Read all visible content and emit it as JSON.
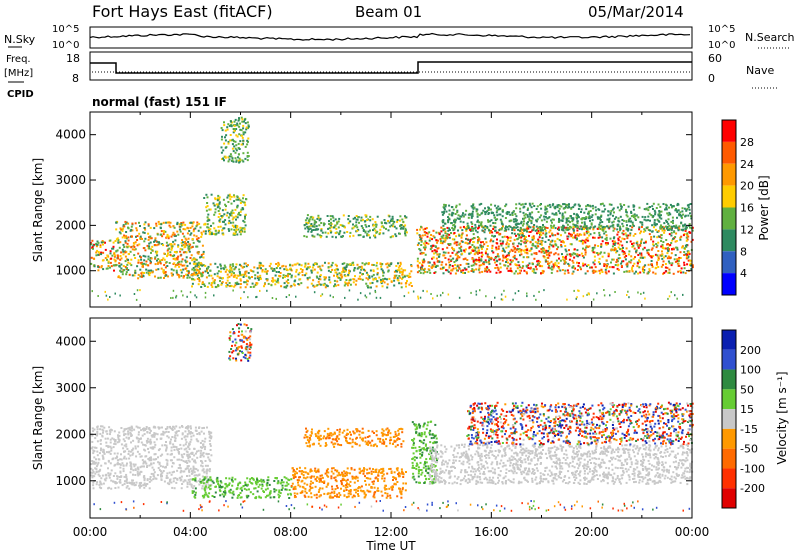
{
  "header": {
    "station": "Fort Hays East (fitACF)",
    "beam": "Beam 01",
    "date": "05/Mar/2014"
  },
  "nsky_panel": {
    "left_label": "N.Sky",
    "right_label": "N.Search",
    "tick_top": "10^5",
    "tick_bottom": "10^0",
    "right_tick_top": "10^5",
    "right_tick_bottom": "10^0"
  },
  "freq_panel": {
    "left_label_1": "Freq.",
    "left_label_2": "[MHz]",
    "cpid_label": "CPID",
    "right_label": "Nave",
    "left_ticks": [
      "18",
      "8"
    ],
    "right_ticks": [
      "60",
      "0"
    ],
    "mode_text": "normal (fast) 151 IF"
  },
  "colorbars": {
    "power": {
      "label": "Power [dB]",
      "ticks": [
        "28",
        "24",
        "20",
        "16",
        "12",
        "8",
        "4"
      ],
      "colors": [
        "#ff0000",
        "#ff5a00",
        "#ff9900",
        "#ffcc00",
        "#60b040",
        "#2e8a60",
        "#3060c0",
        "#0000ff"
      ]
    },
    "velocity": {
      "label": "Velocity [m s⁻¹]",
      "ticks": [
        "200",
        "100",
        "50",
        "15",
        "-15",
        "-50",
        "-100",
        "-200"
      ],
      "colors": [
        "#0a1fb0",
        "#3050d0",
        "#2e8a40",
        "#66cc33",
        "#c8c8c8",
        "#ff9900",
        "#ff6a00",
        "#ff3000",
        "#e00000"
      ]
    }
  },
  "chart_data": [
    {
      "type": "heatmap",
      "title": "Power",
      "ylabel": "Slant Range [km]",
      "y_ticks": [
        "1000",
        "2000",
        "3000",
        "4000"
      ],
      "ylim": [
        200,
        4500
      ],
      "xlim": [
        0,
        24
      ],
      "scatter_bands": [
        {
          "t0": 0.0,
          "t1": 1.0,
          "r0": 1000,
          "r1": 1700,
          "vals": [
            4,
            26
          ]
        },
        {
          "t0": 1.0,
          "t1": 4.5,
          "r0": 850,
          "r1": 2100,
          "vals": [
            4,
            24
          ]
        },
        {
          "t0": 4.5,
          "t1": 6.2,
          "r0": 1800,
          "r1": 2700,
          "vals": [
            4,
            16
          ]
        },
        {
          "t0": 5.2,
          "t1": 6.3,
          "r0": 3400,
          "r1": 4400,
          "vals": [
            4,
            14
          ]
        },
        {
          "t0": 4.0,
          "t1": 12.8,
          "r0": 650,
          "r1": 1200,
          "vals": [
            4,
            20
          ]
        },
        {
          "t0": 8.5,
          "t1": 12.6,
          "r0": 1750,
          "r1": 2250,
          "vals": [
            4,
            14
          ]
        },
        {
          "t0": 13.0,
          "t1": 24.0,
          "r0": 950,
          "r1": 2000,
          "vals": [
            4,
            28
          ]
        },
        {
          "t0": 14.0,
          "t1": 24.0,
          "r0": 1900,
          "r1": 2500,
          "vals": [
            4,
            10
          ]
        }
      ]
    },
    {
      "type": "heatmap",
      "title": "Velocity",
      "ylabel": "Slant Range [km]",
      "y_ticks": [
        "1000",
        "2000",
        "3000",
        "4000"
      ],
      "ylim": [
        200,
        4500
      ],
      "xlim": [
        0,
        24
      ],
      "x_ticks": [
        "00:00",
        "04:00",
        "08:00",
        "12:00",
        "16:00",
        "20:00",
        "00:00"
      ],
      "xlabel": "Time UT",
      "scatter_bands": [
        {
          "t0": 0.0,
          "t1": 4.8,
          "r0": 850,
          "r1": 2200,
          "vals": [
            -10,
            10
          ]
        },
        {
          "t0": 4.0,
          "t1": 8.0,
          "r0": 650,
          "r1": 1100,
          "vals": [
            20,
            60
          ]
        },
        {
          "t0": 8.0,
          "t1": 12.6,
          "r0": 650,
          "r1": 1300,
          "vals": [
            -60,
            -20
          ]
        },
        {
          "t0": 8.5,
          "t1": 12.5,
          "r0": 1750,
          "r1": 2150,
          "vals": [
            -60,
            -20
          ]
        },
        {
          "t0": 5.5,
          "t1": 6.4,
          "r0": 3600,
          "r1": 4400,
          "vals": [
            -250,
            250
          ]
        },
        {
          "t0": 12.8,
          "t1": 13.8,
          "r0": 950,
          "r1": 2300,
          "vals": [
            20,
            60
          ]
        },
        {
          "t0": 13.5,
          "t1": 24.0,
          "r0": 950,
          "r1": 1800,
          "vals": [
            -10,
            10
          ]
        },
        {
          "t0": 15.0,
          "t1": 24.0,
          "r0": 1800,
          "r1": 2700,
          "vals": [
            -250,
            250
          ]
        }
      ]
    }
  ]
}
